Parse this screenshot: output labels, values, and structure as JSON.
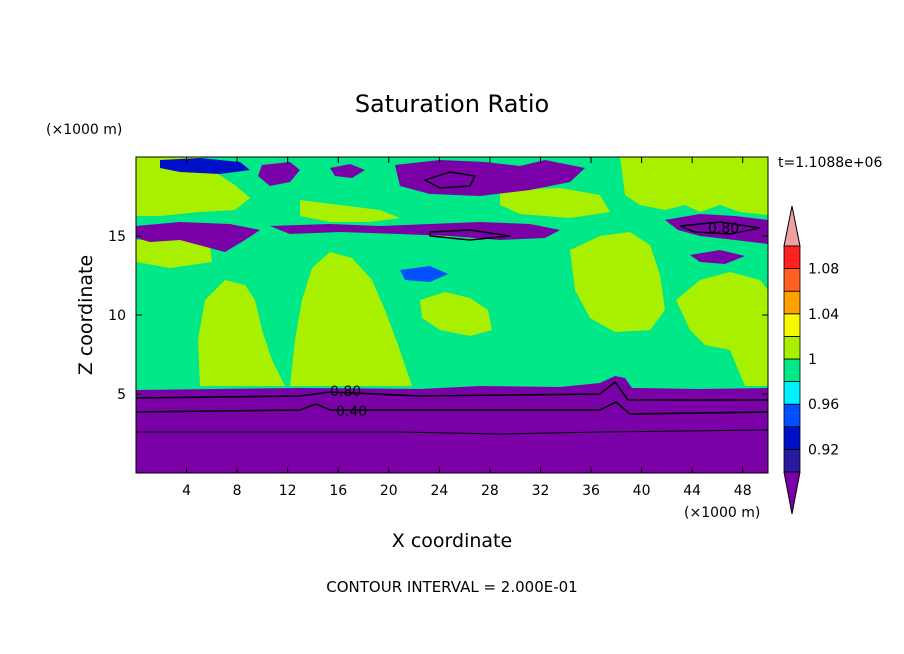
{
  "chart_data": {
    "type": "heatmap",
    "title": "Saturation Ratio",
    "xlabel": "X coordinate",
    "ylabel": "Z coordinate",
    "x_unit": "(×1000 m)",
    "y_unit": "(×1000 m)",
    "time_label": "t=1.1088e+06",
    "footer": "CONTOUR INTERVAL = 2.000E-01",
    "xlim": [
      0,
      50
    ],
    "ylim": [
      0,
      20
    ],
    "x_ticks": [
      "4",
      "8",
      "12",
      "16",
      "20",
      "24",
      "28",
      "32",
      "36",
      "40",
      "44",
      "48"
    ],
    "x_tick_values": [
      4,
      8,
      12,
      16,
      20,
      24,
      28,
      32,
      36,
      40,
      44,
      48
    ],
    "y_ticks": [
      "5",
      "10",
      "15"
    ],
    "y_tick_values": [
      5,
      10,
      15
    ],
    "contour_labels": [
      "0.80",
      "0.40",
      "0.80"
    ],
    "colorbar": {
      "labels": [
        "1.08",
        "1.04",
        "1",
        "0.96",
        "0.92"
      ],
      "levels": [
        0.92,
        0.94,
        0.96,
        0.98,
        1.0,
        1.02,
        1.04,
        1.06,
        1.08,
        1.1
      ],
      "colors": [
        "#7a00a8",
        "#2a1aa0",
        "#0010c8",
        "#0050ff",
        "#00f0ff",
        "#00e888",
        "#a8f000",
        "#f8f800",
        "#ffa000",
        "#ff6020",
        "#ff2020",
        "#f0a0a0"
      ]
    },
    "grid": false
  }
}
